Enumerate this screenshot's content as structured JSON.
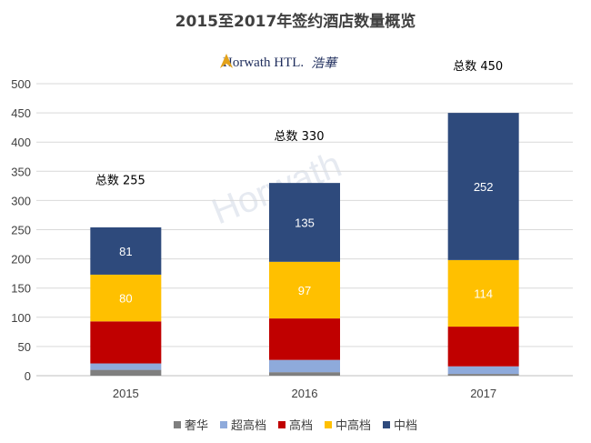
{
  "chart_data": {
    "type": "bar",
    "stacked": true,
    "title": "2015至2017年签约酒店数量概览",
    "categories": [
      "2015",
      "2016",
      "2017"
    ],
    "ylim": [
      0,
      500
    ],
    "yticks": [
      0,
      50,
      100,
      150,
      200,
      250,
      300,
      350,
      400,
      450,
      500
    ],
    "grid": true,
    "legend_position": "bottom",
    "series": [
      {
        "name": "奢华",
        "color": "#7f7f7f",
        "values": [
          10,
          6,
          3
        ]
      },
      {
        "name": "超高档",
        "color": "#8eaadb",
        "values": [
          11,
          21,
          13
        ]
      },
      {
        "name": "高档",
        "color": "#c00000",
        "values": [
          72,
          71,
          68
        ]
      },
      {
        "name": "中高档",
        "color": "#ffc000",
        "values": [
          80,
          97,
          114
        ]
      },
      {
        "name": "中档",
        "color": "#2e4a7c",
        "values": [
          81,
          135,
          252
        ]
      }
    ],
    "segment_labels": [
      {
        "series": "中高档",
        "values": [
          "80",
          "97",
          "114"
        ]
      },
      {
        "series": "中档",
        "values": [
          "81",
          "135",
          "252"
        ]
      }
    ],
    "totals": [
      "总数 255",
      "总数 330",
      "总数 450"
    ],
    "totals_values": [
      255,
      330,
      450
    ]
  },
  "logo": {
    "brand": "Horwath HTL.",
    "brand_cn": "浩華",
    "watermark": "Horwath"
  }
}
